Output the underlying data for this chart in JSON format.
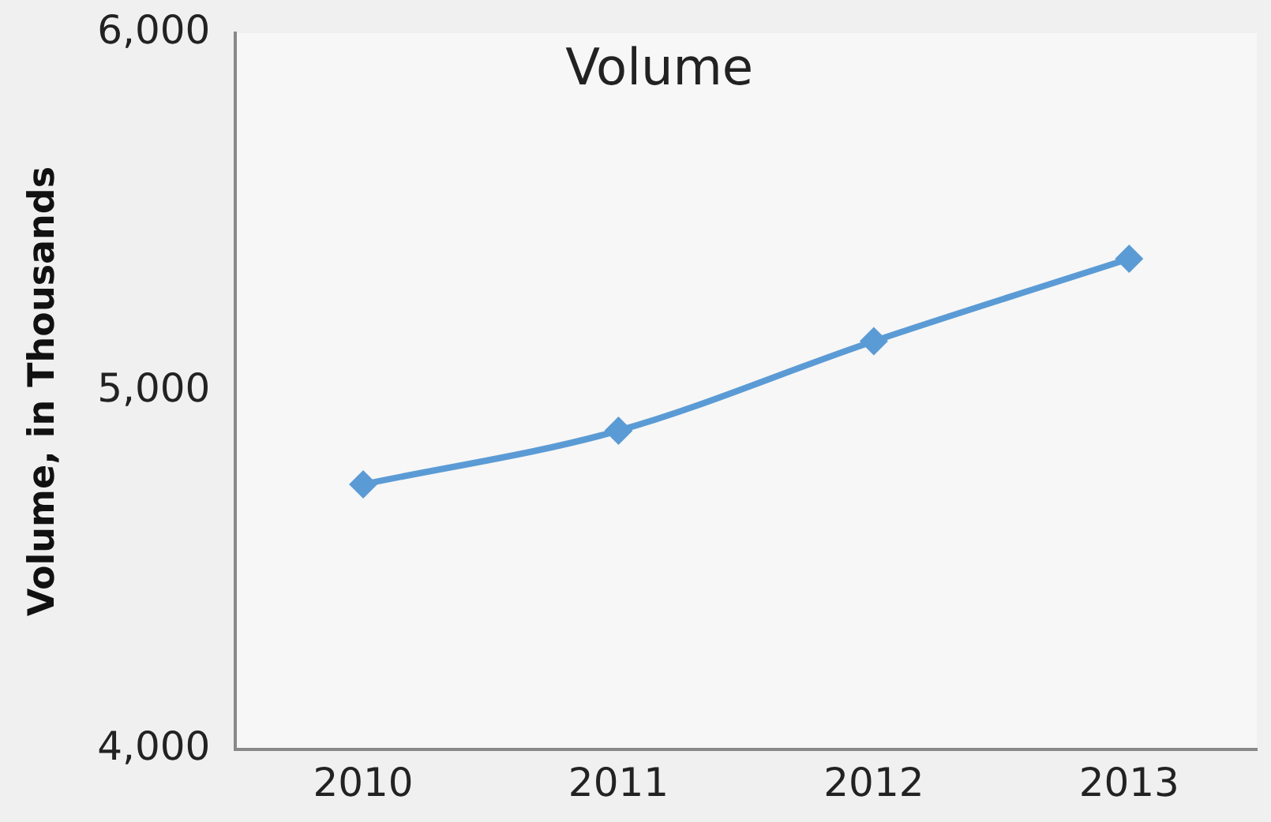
{
  "chart_data": {
    "type": "line",
    "title": "Volume",
    "ylabel": "Volume, in Thousands",
    "categories": [
      "2010",
      "2011",
      "2012",
      "2013"
    ],
    "series": [
      {
        "color": "#5b9bd5",
        "values": [
          4740,
          4890,
          5140,
          5370
        ]
      }
    ],
    "ylim": [
      4000,
      6000
    ],
    "yticks": [
      {
        "value": 4000,
        "label": "4,000"
      },
      {
        "value": 5000,
        "label": "5,000"
      },
      {
        "value": 6000,
        "label": "6,000"
      }
    ],
    "grid": false,
    "legend": false,
    "marker": "diamond",
    "line_style": "solid"
  }
}
